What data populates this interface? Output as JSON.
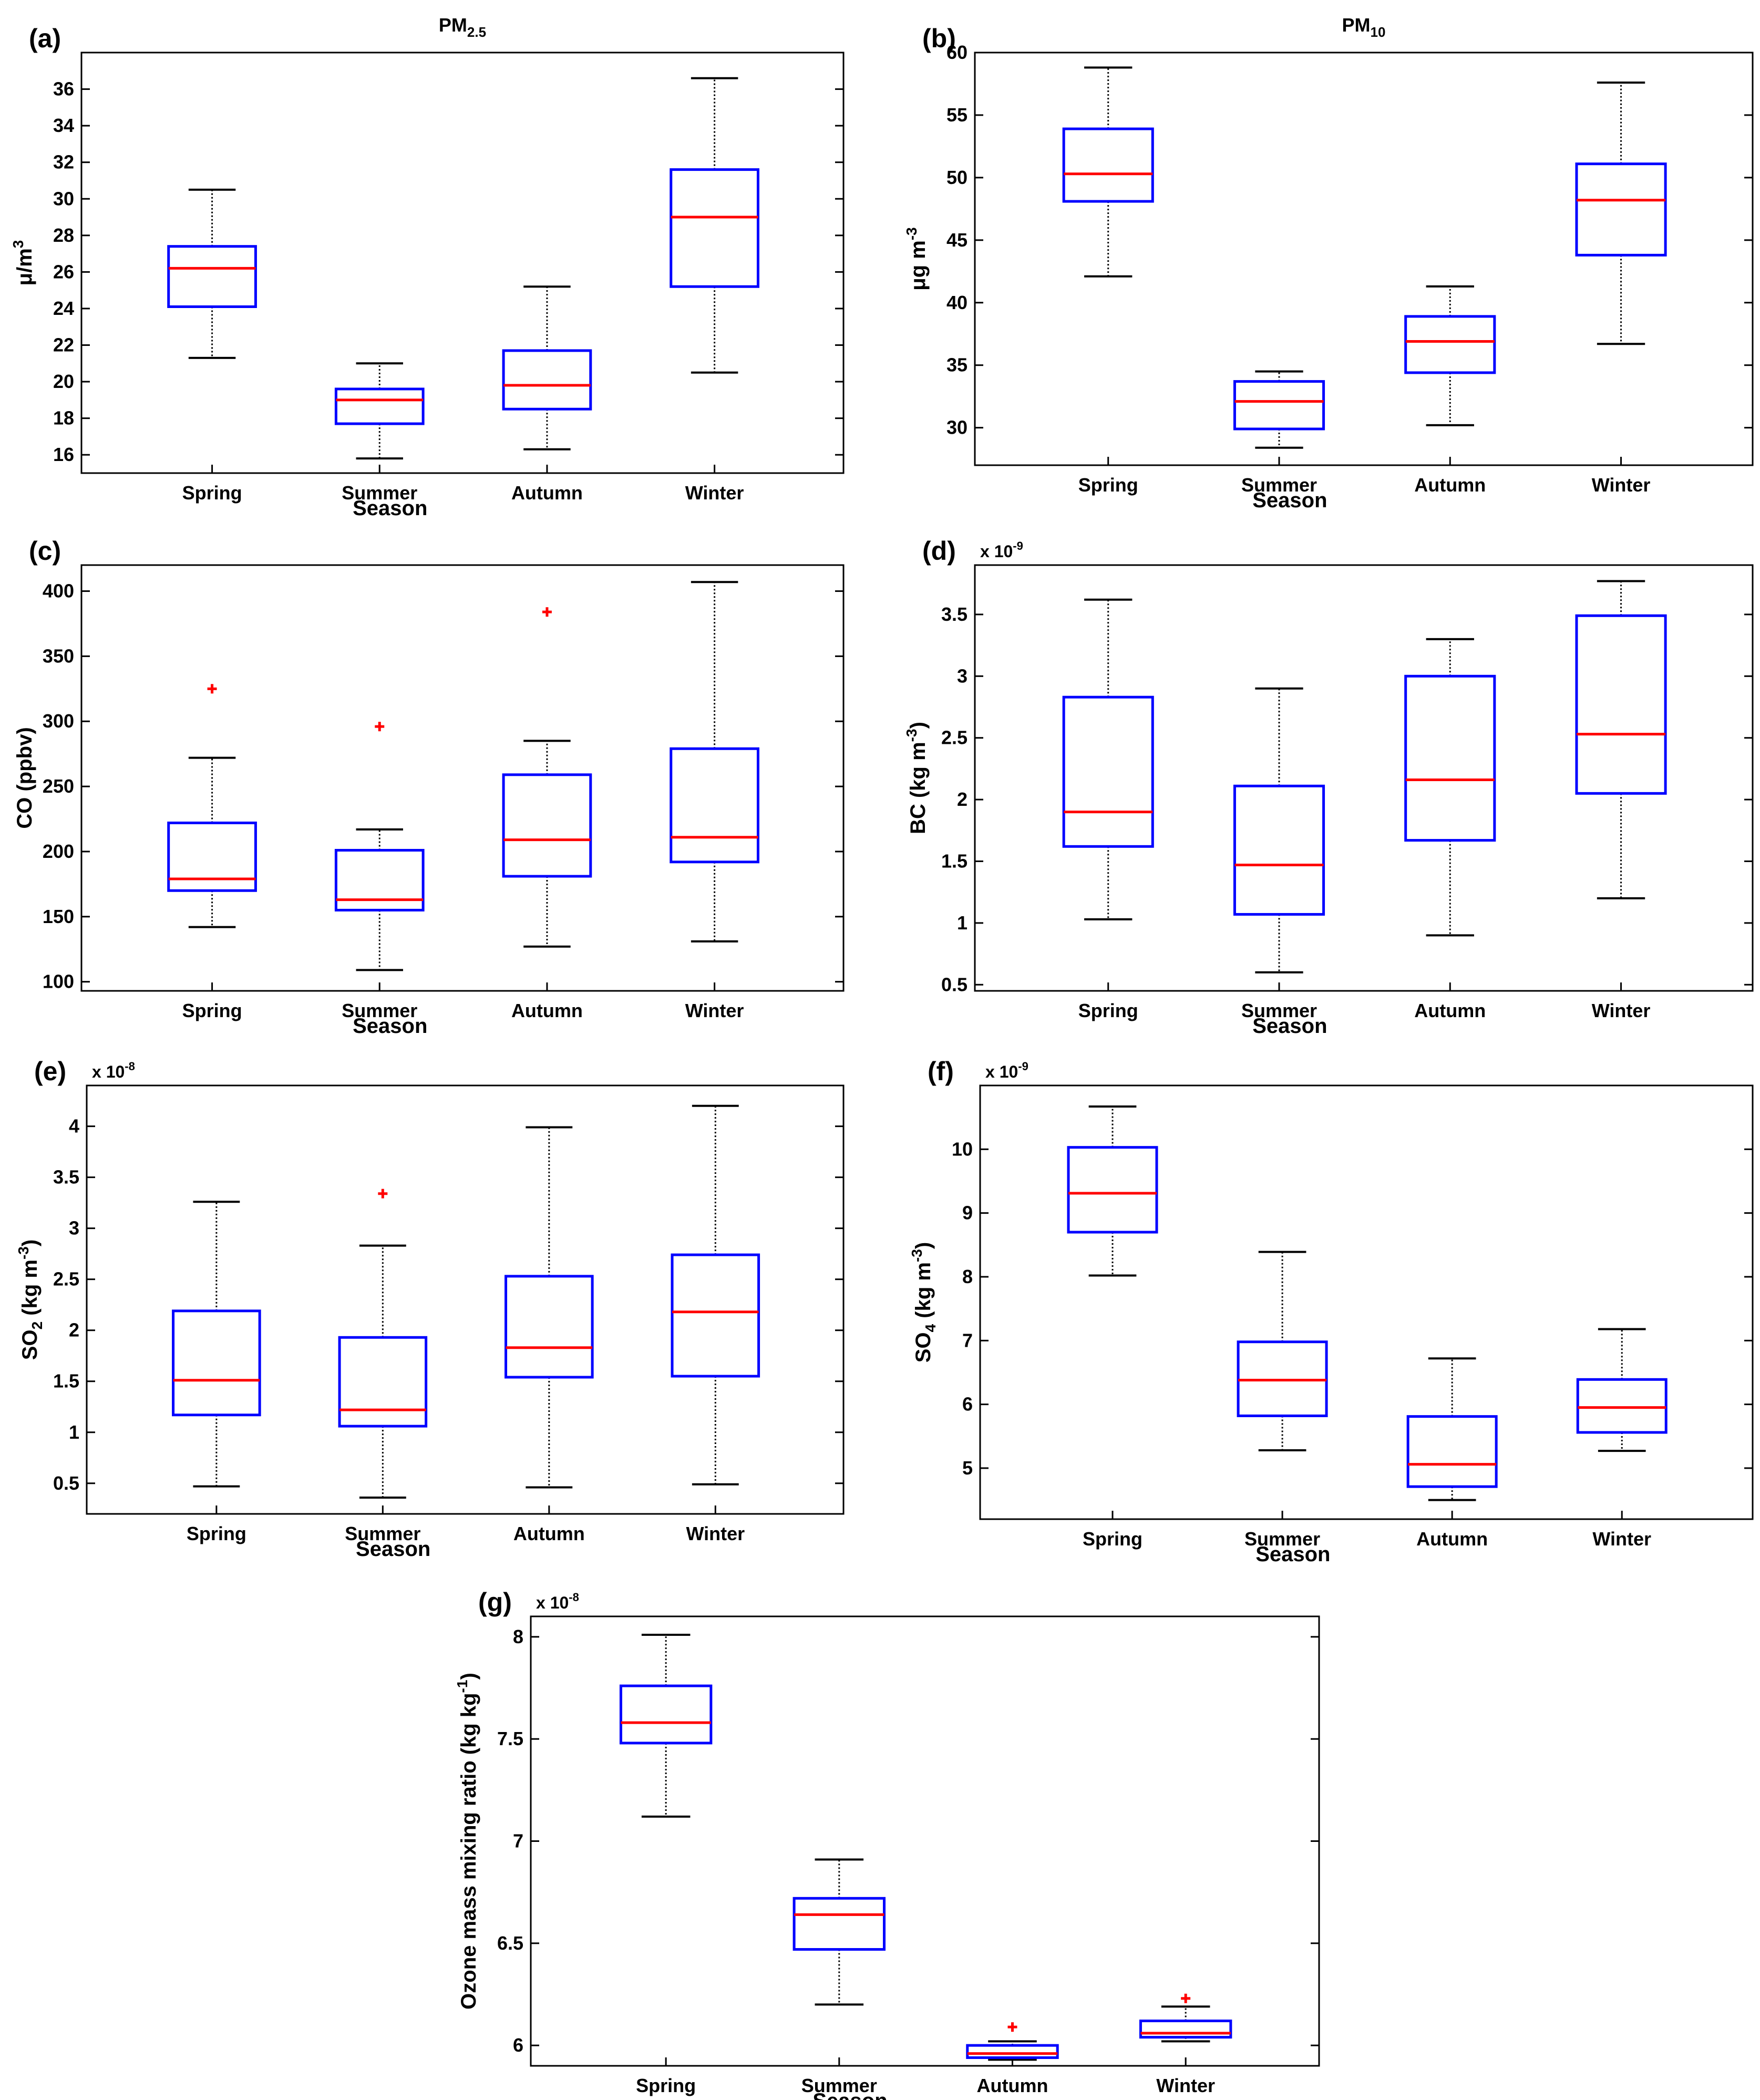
{
  "figure": {
    "colors": {
      "box": "#0000ff",
      "median": "#ff0000",
      "outlier": "#ff0000",
      "whisker": "#000000"
    }
  },
  "chart_data": [
    {
      "id": "a",
      "type": "box",
      "panel_label": "(a)",
      "title": "PM",
      "title_sub": "2.5",
      "ylabel": "μ/m",
      "ylabel_sup": "3",
      "xlabel": "Season",
      "exponent": "",
      "categories": [
        "Spring",
        "Summer",
        "Autumn",
        "Winter"
      ],
      "ylim": [
        15,
        38
      ],
      "yticks": [
        "16",
        "18",
        "20",
        "22",
        "24",
        "26",
        "28",
        "30",
        "32",
        "34",
        "36"
      ],
      "boxes": [
        {
          "min": 21.3,
          "q1": 24.1,
          "median": 26.2,
          "q3": 27.4,
          "max": 30.5,
          "outliers": []
        },
        {
          "min": 15.8,
          "q1": 17.7,
          "median": 19.0,
          "q3": 19.6,
          "max": 21.0,
          "outliers": []
        },
        {
          "min": 16.3,
          "q1": 18.5,
          "median": 19.8,
          "q3": 21.7,
          "max": 25.2,
          "outliers": []
        },
        {
          "min": 20.5,
          "q1": 25.2,
          "median": 29.0,
          "q3": 31.6,
          "max": 36.6,
          "outliers": []
        }
      ]
    },
    {
      "id": "b",
      "type": "box",
      "panel_label": "(b)",
      "title": "PM",
      "title_sub": "10",
      "ylabel": "μg m",
      "ylabel_sup": "-3",
      "xlabel": "Season",
      "exponent": "",
      "categories": [
        "Spring",
        "Summer",
        "Autumn",
        "Winter"
      ],
      "ylim": [
        27,
        60
      ],
      "yticks": [
        "30",
        "35",
        "40",
        "45",
        "50",
        "55",
        "60"
      ],
      "boxes": [
        {
          "min": 42.1,
          "q1": 48.1,
          "median": 50.3,
          "q3": 53.9,
          "max": 58.8,
          "outliers": []
        },
        {
          "min": 28.4,
          "q1": 29.9,
          "median": 32.1,
          "q3": 33.7,
          "max": 34.5,
          "outliers": []
        },
        {
          "min": 30.2,
          "q1": 34.4,
          "median": 36.9,
          "q3": 38.9,
          "max": 41.3,
          "outliers": []
        },
        {
          "min": 36.7,
          "q1": 43.8,
          "median": 48.2,
          "q3": 51.1,
          "max": 57.6,
          "outliers": []
        }
      ]
    },
    {
      "id": "c",
      "type": "box",
      "panel_label": "(c)",
      "title": "",
      "title_sub": "",
      "ylabel": "CO (ppbv)",
      "ylabel_sup": "",
      "xlabel": "Season",
      "exponent": "",
      "categories": [
        "Spring",
        "Summer",
        "Autumn",
        "Winter"
      ],
      "ylim": [
        93,
        420
      ],
      "yticks": [
        "100",
        "150",
        "200",
        "250",
        "300",
        "350",
        "400"
      ],
      "boxes": [
        {
          "min": 142,
          "q1": 170,
          "median": 179,
          "q3": 222,
          "max": 272,
          "outliers": [
            325
          ]
        },
        {
          "min": 109,
          "q1": 155,
          "median": 163,
          "q3": 201,
          "max": 217,
          "outliers": [
            296
          ]
        },
        {
          "min": 127,
          "q1": 181,
          "median": 209,
          "q3": 259,
          "max": 285,
          "outliers": [
            384
          ]
        },
        {
          "min": 131,
          "q1": 192,
          "median": 211,
          "q3": 279,
          "max": 407,
          "outliers": []
        }
      ]
    },
    {
      "id": "d",
      "type": "box",
      "panel_label": "(d)",
      "title": "",
      "title_sub": "",
      "ylabel": "BC (kg m",
      "ylabel_sup": "-3",
      "ylabel_tail": ")",
      "xlabel": "Season",
      "exponent": "-9",
      "categories": [
        "Spring",
        "Summer",
        "Autumn",
        "Winter"
      ],
      "ylim": [
        0.45,
        3.9
      ],
      "yticks": [
        "0.5",
        "1",
        "1.5",
        "2",
        "2.5",
        "3",
        "3.5"
      ],
      "boxes": [
        {
          "min": 1.03,
          "q1": 1.62,
          "median": 1.9,
          "q3": 2.83,
          "max": 3.62,
          "outliers": []
        },
        {
          "min": 0.6,
          "q1": 1.07,
          "median": 1.47,
          "q3": 2.11,
          "max": 2.9,
          "outliers": []
        },
        {
          "min": 0.9,
          "q1": 1.67,
          "median": 2.16,
          "q3": 3.0,
          "max": 3.3,
          "outliers": []
        },
        {
          "min": 1.2,
          "q1": 2.05,
          "median": 2.53,
          "q3": 3.49,
          "max": 3.77,
          "outliers": []
        }
      ]
    },
    {
      "id": "e",
      "type": "box",
      "panel_label": "(e)",
      "title": "",
      "title_sub": "",
      "ylabel": "SO",
      "ylabel_sub": "2",
      "ylabel_mid": " (kg m",
      "ylabel_sup": "-3",
      "ylabel_tail": ")",
      "xlabel": "Season",
      "exponent": "-8",
      "categories": [
        "Spring",
        "Summer",
        "Autumn",
        "Winter"
      ],
      "ylim": [
        0.2,
        4.4
      ],
      "yticks": [
        "0.5",
        "1",
        "1.5",
        "2",
        "2.5",
        "3",
        "3.5",
        "4"
      ],
      "boxes": [
        {
          "min": 0.47,
          "q1": 1.17,
          "median": 1.51,
          "q3": 2.19,
          "max": 3.26,
          "outliers": []
        },
        {
          "min": 0.36,
          "q1": 1.06,
          "median": 1.22,
          "q3": 1.93,
          "max": 2.83,
          "outliers": [
            3.34
          ]
        },
        {
          "min": 0.46,
          "q1": 1.54,
          "median": 1.83,
          "q3": 2.53,
          "max": 3.99,
          "outliers": []
        },
        {
          "min": 0.49,
          "q1": 1.55,
          "median": 2.18,
          "q3": 2.74,
          "max": 4.2,
          "outliers": []
        }
      ]
    },
    {
      "id": "f",
      "type": "box",
      "panel_label": "(f)",
      "title": "",
      "title_sub": "",
      "ylabel": "SO",
      "ylabel_sub": "4",
      "ylabel_mid": " (kg m",
      "ylabel_sup": "-3",
      "ylabel_tail": ")",
      "xlabel": "Season",
      "exponent": "-9",
      "categories": [
        "Spring",
        "Summer",
        "Autumn",
        "Winter"
      ],
      "ylim": [
        4.2,
        11
      ],
      "yticks": [
        "5",
        "6",
        "7",
        "8",
        "9",
        "10"
      ],
      "boxes": [
        {
          "min": 8.02,
          "q1": 8.7,
          "median": 9.31,
          "q3": 10.03,
          "max": 10.67,
          "outliers": []
        },
        {
          "min": 5.28,
          "q1": 5.82,
          "median": 6.38,
          "q3": 6.98,
          "max": 8.39,
          "outliers": []
        },
        {
          "min": 4.5,
          "q1": 4.71,
          "median": 5.06,
          "q3": 5.81,
          "max": 6.72,
          "outliers": []
        },
        {
          "min": 5.27,
          "q1": 5.56,
          "median": 5.95,
          "q3": 6.39,
          "max": 7.18,
          "outliers": []
        }
      ]
    },
    {
      "id": "g",
      "type": "box",
      "panel_label": "(g)",
      "title": "",
      "title_sub": "",
      "ylabel": "Ozone mass mixing ratio (kg kg",
      "ylabel_sup": "-1",
      "ylabel_tail": ")",
      "xlabel": "Season",
      "exponent": "-8",
      "categories": [
        "Spring",
        "Summer",
        "Autumn",
        "Winter"
      ],
      "ylim": [
        5.9,
        8.1
      ],
      "yticks": [
        "6",
        "6.5",
        "7",
        "7.5",
        "8"
      ],
      "boxes": [
        {
          "min": 7.12,
          "q1": 7.48,
          "median": 7.58,
          "q3": 7.76,
          "max": 8.01,
          "outliers": []
        },
        {
          "min": 6.2,
          "q1": 6.47,
          "median": 6.64,
          "q3": 6.72,
          "max": 6.91,
          "outliers": []
        },
        {
          "min": 5.93,
          "q1": 5.94,
          "median": 5.96,
          "q3": 6.0,
          "max": 6.02,
          "outliers": [
            6.09
          ]
        },
        {
          "min": 6.02,
          "q1": 6.04,
          "median": 6.06,
          "q3": 6.12,
          "max": 6.19,
          "outliers": [
            6.23
          ]
        }
      ]
    }
  ]
}
